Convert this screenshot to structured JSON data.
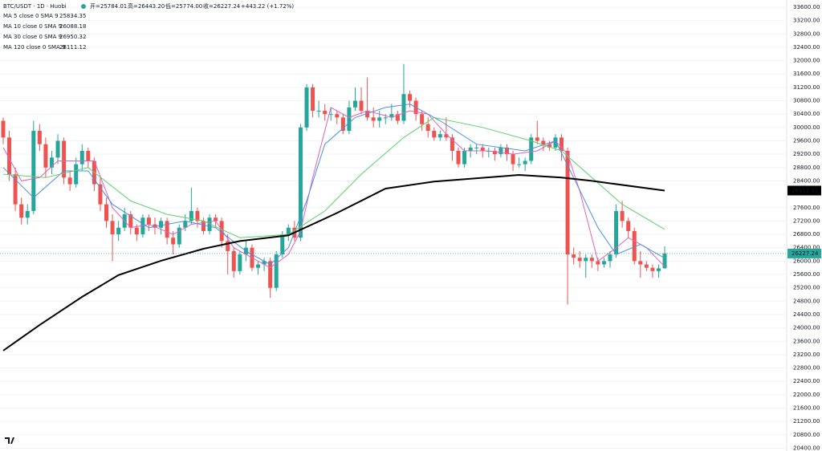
{
  "chart_data": {
    "type": "candlestick",
    "symbol": "BTC/USDT · 1D · Huobi",
    "ohlc_text": [
      "开=25784.01",
      "高=26443.20",
      "低=25774.00",
      "收=26227.24",
      "+443.22 (+1.72%)"
    ],
    "up_color": "#26a69a",
    "down_color": "#ef5350",
    "grid": true,
    "ylim": [
      20315,
      33816
    ],
    "yticks": [
      {
        "value": 33600,
        "label": "33600.00"
      },
      {
        "value": 33200,
        "label": "33200.00"
      },
      {
        "value": 32800,
        "label": "32800.00"
      },
      {
        "value": 32400,
        "label": "32400.00"
      },
      {
        "value": 32000,
        "label": "32000.00"
      },
      {
        "value": 31600,
        "label": "31600.00"
      },
      {
        "value": 31200,
        "label": "31200.00"
      },
      {
        "value": 30800,
        "label": "30800.00"
      },
      {
        "value": 30400,
        "label": "30400.00"
      },
      {
        "value": 30000,
        "label": "30000.00"
      },
      {
        "value": 29600,
        "label": "29600.00"
      },
      {
        "value": 29200,
        "label": "29200.00"
      },
      {
        "value": 28800,
        "label": "28800.00"
      },
      {
        "value": 28400,
        "label": "28400.00"
      },
      {
        "value": 27600,
        "label": "27600.00"
      },
      {
        "value": 27200,
        "label": "27200.00"
      },
      {
        "value": 26800,
        "label": "26800.00"
      },
      {
        "value": 26400,
        "label": "26400.00"
      },
      {
        "value": 26000,
        "label": "26000.00"
      },
      {
        "value": 25600,
        "label": "25600.00"
      },
      {
        "value": 25200,
        "label": "25200.00"
      },
      {
        "value": 24800,
        "label": "24800.00"
      },
      {
        "value": 24400,
        "label": "24400.00"
      },
      {
        "value": 24000,
        "label": "24000.00"
      },
      {
        "value": 23600,
        "label": "23600.00"
      },
      {
        "value": 23200,
        "label": "23200.00"
      },
      {
        "value": 22800,
        "label": "22800.00"
      },
      {
        "value": 22400,
        "label": "22400.00"
      },
      {
        "value": 22000,
        "label": "22000.00"
      },
      {
        "value": 21600,
        "label": "21600.00"
      },
      {
        "value": 21200,
        "label": "21200.00"
      },
      {
        "value": 20800,
        "label": "20800.00"
      },
      {
        "value": 20400,
        "label": "20400.00"
      }
    ],
    "ohlc": [
      [
        30200,
        30300,
        29500,
        29700
      ],
      [
        29700,
        29900,
        28400,
        28600
      ],
      [
        28600,
        28800,
        27500,
        27700
      ],
      [
        27700,
        27900,
        27100,
        27300
      ],
      [
        27300,
        27700,
        27100,
        27500
      ],
      [
        27500,
        30200,
        27400,
        29900
      ],
      [
        29900,
        30100,
        29300,
        29500
      ],
      [
        29500,
        29700,
        28500,
        28800
      ],
      [
        28800,
        29300,
        28600,
        29100
      ],
      [
        29100,
        29800,
        28900,
        29600
      ],
      [
        29600,
        29700,
        28300,
        28500
      ],
      [
        28500,
        28700,
        28100,
        28300
      ],
      [
        28300,
        29100,
        28200,
        28900
      ],
      [
        28900,
        29500,
        28700,
        29300
      ],
      [
        29300,
        29400,
        28800,
        29000
      ],
      [
        29000,
        29100,
        28100,
        28300
      ],
      [
        28300,
        28500,
        27500,
        27700
      ],
      [
        27700,
        27900,
        27000,
        27200
      ],
      [
        27200,
        27400,
        26000,
        26800
      ],
      [
        26800,
        27200,
        26600,
        27000
      ],
      [
        27000,
        27600,
        26900,
        27400
      ],
      [
        27400,
        27500,
        26800,
        27000
      ],
      [
        27000,
        27100,
        26600,
        26800
      ],
      [
        26800,
        27400,
        26700,
        27300
      ],
      [
        27300,
        27400,
        26900,
        27100
      ],
      [
        27100,
        27300,
        26800,
        27000
      ],
      [
        27000,
        27300,
        26800,
        27200
      ],
      [
        27200,
        27300,
        26500,
        26700
      ],
      [
        26700,
        26900,
        26200,
        26500
      ],
      [
        26500,
        27100,
        26400,
        27000
      ],
      [
        27000,
        27400,
        26900,
        27200
      ],
      [
        27200,
        28200,
        27100,
        27500
      ],
      [
        27500,
        27600,
        27000,
        27200
      ],
      [
        27200,
        27300,
        26800,
        26900
      ],
      [
        26900,
        27400,
        26800,
        27300
      ],
      [
        27300,
        27400,
        27000,
        27200
      ],
      [
        27200,
        27300,
        26400,
        26600
      ],
      [
        26600,
        26800,
        25600,
        26300
      ],
      [
        26300,
        26400,
        25500,
        25700
      ],
      [
        25700,
        26300,
        25600,
        26200
      ],
      [
        26200,
        26600,
        26000,
        26400
      ],
      [
        26400,
        26500,
        25700,
        25800
      ],
      [
        25800,
        26000,
        25600,
        25900
      ],
      [
        25900,
        26100,
        25700,
        26000
      ],
      [
        26000,
        26100,
        24900,
        25200
      ],
      [
        25200,
        26300,
        25100,
        26200
      ],
      [
        26200,
        26900,
        26100,
        26800
      ],
      [
        26800,
        27100,
        26600,
        27000
      ],
      [
        27000,
        27200,
        26600,
        26700
      ],
      [
        26700,
        30100,
        26600,
        30000
      ],
      [
        30000,
        31300,
        29900,
        31200
      ],
      [
        31200,
        31300,
        30300,
        30500
      ],
      [
        30500,
        30800,
        30300,
        30500
      ],
      [
        30500,
        30700,
        30200,
        30400
      ],
      [
        30400,
        30600,
        30200,
        30400
      ],
      [
        30400,
        30500,
        30100,
        30300
      ],
      [
        30300,
        30400,
        29800,
        29900
      ],
      [
        29900,
        30800,
        29800,
        30600
      ],
      [
        30600,
        31200,
        30500,
        30800
      ],
      [
        30800,
        31200,
        30400,
        30500
      ],
      [
        30500,
        31500,
        30200,
        30300
      ],
      [
        30300,
        30600,
        30000,
        30200
      ],
      [
        30200,
        30500,
        30000,
        30300
      ],
      [
        30300,
        30400,
        30100,
        30300
      ],
      [
        30300,
        30700,
        30200,
        30400
      ],
      [
        30400,
        30500,
        30100,
        30200
      ],
      [
        30200,
        31900,
        30100,
        31000
      ],
      [
        31000,
        31100,
        30600,
        30800
      ],
      [
        30800,
        30900,
        30200,
        30400
      ],
      [
        30400,
        30500,
        29900,
        30100
      ],
      [
        30100,
        30300,
        29700,
        29900
      ],
      [
        29900,
        30000,
        29600,
        29700
      ],
      [
        29700,
        29900,
        29600,
        29800
      ],
      [
        29800,
        30300,
        29600,
        29700
      ],
      [
        29700,
        29800,
        29000,
        29300
      ],
      [
        29300,
        29400,
        28800,
        28900
      ],
      [
        28900,
        29400,
        28800,
        29300
      ],
      [
        29300,
        29500,
        29100,
        29400
      ],
      [
        29400,
        29500,
        29200,
        29400
      ],
      [
        29400,
        29500,
        29100,
        29300
      ],
      [
        29300,
        29400,
        29100,
        29300
      ],
      [
        29300,
        29400,
        29000,
        29200
      ],
      [
        29200,
        29500,
        29100,
        29400
      ],
      [
        29400,
        29500,
        29000,
        29200
      ],
      [
        29200,
        29300,
        28700,
        28900
      ],
      [
        28900,
        29100,
        28800,
        28900
      ],
      [
        28900,
        29100,
        28700,
        29000
      ],
      [
        29000,
        29800,
        28900,
        29700
      ],
      [
        29700,
        30200,
        29500,
        29600
      ],
      [
        29600,
        29700,
        29300,
        29500
      ],
      [
        29500,
        29600,
        29300,
        29400
      ],
      [
        29400,
        29800,
        29300,
        29700
      ],
      [
        29700,
        29800,
        29000,
        29300
      ],
      [
        29300,
        29400,
        24700,
        26200
      ],
      [
        26200,
        26400,
        25900,
        26100
      ],
      [
        26100,
        26300,
        25800,
        26000
      ],
      [
        26000,
        26200,
        25500,
        26100
      ],
      [
        26100,
        26200,
        25800,
        26000
      ],
      [
        26000,
        26100,
        25700,
        25900
      ],
      [
        25900,
        26100,
        25800,
        26000
      ],
      [
        26000,
        26300,
        25800,
        26200
      ],
      [
        26200,
        27700,
        26100,
        27500
      ],
      [
        27500,
        27800,
        27000,
        27200
      ],
      [
        27200,
        27300,
        26700,
        26900
      ],
      [
        26900,
        27000,
        25900,
        26000
      ],
      [
        26000,
        26300,
        25500,
        25900
      ],
      [
        25900,
        26000,
        25700,
        25800
      ],
      [
        25800,
        25900,
        25500,
        25700
      ],
      [
        25700,
        25900,
        25500,
        25784.01
      ],
      [
        25784.01,
        26443.2,
        25774,
        26227.24
      ]
    ],
    "series": [
      {
        "name": "MA 5 close 0 SMA 9",
        "color": "#e062c0",
        "x": [
          0,
          3,
          6,
          9,
          12,
          15,
          18,
          21,
          24,
          28,
          31,
          35,
          38,
          41,
          44,
          47,
          49,
          51,
          54,
          57,
          60,
          64,
          67,
          70,
          73,
          76,
          80,
          84,
          88,
          91,
          93,
          95,
          98,
          101,
          103,
          106,
          109
        ],
        "values": [
          29400,
          28400,
          28500,
          29000,
          29000,
          29000,
          27600,
          27000,
          27100,
          26800,
          27100,
          27200,
          26400,
          26100,
          25800,
          26200,
          26900,
          28500,
          30600,
          30300,
          30500,
          30300,
          30500,
          30400,
          29800,
          29300,
          29300,
          29200,
          29300,
          29600,
          29200,
          28100,
          26000,
          26400,
          26700,
          26400,
          25834.35
        ]
      },
      {
        "name": "MA 10 close 0 SMA 9",
        "color": "#4a90e2",
        "x": [
          0,
          5,
          10,
          14,
          18,
          24,
          30,
          35,
          40,
          44,
          47,
          50,
          53,
          58,
          63,
          67,
          72,
          78,
          86,
          91,
          94,
          98,
          101,
          105,
          109
        ],
        "values": [
          28800,
          27900,
          28700,
          28700,
          27700,
          27000,
          27200,
          27000,
          26300,
          25900,
          26400,
          27800,
          29500,
          30300,
          30600,
          30700,
          30200,
          29500,
          29300,
          29600,
          28500,
          27000,
          26200,
          26500,
          26088.18
        ]
      },
      {
        "name": "MA 30 close 0 SMA 9",
        "color": "#5cd16c",
        "x": [
          0,
          7,
          14,
          21,
          27,
          33,
          39,
          47,
          53,
          59,
          66,
          71,
          79,
          87,
          92,
          97,
          102,
          109
        ],
        "values": [
          28600,
          28500,
          28800,
          27800,
          27400,
          27200,
          26700,
          26800,
          27500,
          28600,
          29700,
          30300,
          30000,
          29600,
          29300,
          28500,
          27700,
          26950.32
        ]
      },
      {
        "name": "MA 120 close 0 SMA 9",
        "color": "#000000",
        "x": [
          0,
          6,
          13,
          19,
          26,
          33,
          39,
          47,
          55,
          63,
          71,
          85,
          92,
          97,
          109
        ],
        "values": [
          23320,
          24090,
          24930,
          25580,
          26010,
          26370,
          26600,
          26770,
          27440,
          28170,
          28380,
          28580,
          28500,
          28400,
          28111.12
        ]
      }
    ]
  }
}
